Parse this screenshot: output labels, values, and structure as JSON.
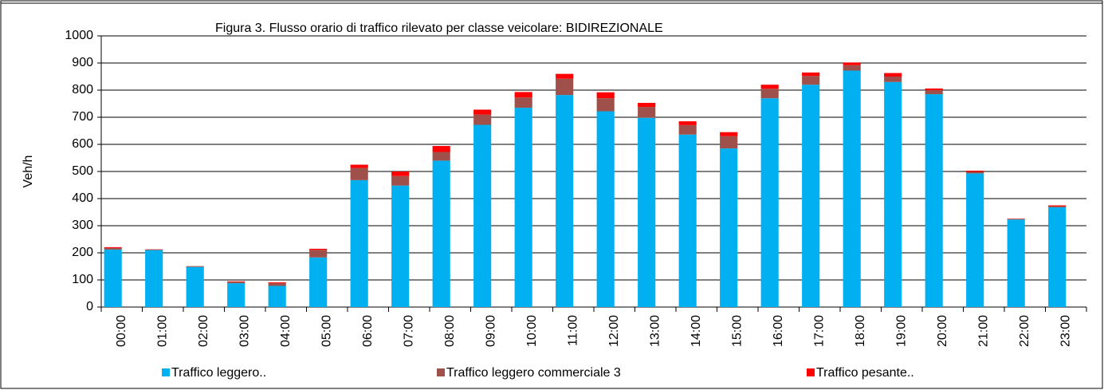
{
  "chart_data": {
    "type": "stacked_bar",
    "title": "Figura 3. Flusso orario di traffico rilevato per classe veicolare:  BIDIREZIONALE",
    "y_label": "Veh/h",
    "categories": [
      "00:00",
      "01:00",
      "02:00",
      "03:00",
      "04:00",
      "05:00",
      "06:00",
      "07:00",
      "08:00",
      "09:00",
      "10:00",
      "11:00",
      "12:00",
      "13:00",
      "14:00",
      "15:00",
      "16:00",
      "17:00",
      "18:00",
      "19:00",
      "20:00",
      "21:00",
      "22:00",
      "23:00"
    ],
    "series": [
      {
        "name": "Traffico leggero..",
        "color": "#00b0f0",
        "values": [
          212,
          210,
          148,
          88,
          78,
          183,
          468,
          448,
          540,
          672,
          735,
          782,
          722,
          698,
          636,
          585,
          770,
          820,
          872,
          830,
          785,
          493,
          323,
          368
        ]
      },
      {
        "name": "Traffico  leggero commerciale 3",
        "color": "#a0504a",
        "values": [
          6,
          2,
          3,
          5,
          10,
          28,
          45,
          35,
          32,
          38,
          38,
          60,
          48,
          40,
          35,
          45,
          35,
          32,
          20,
          20,
          15,
          6,
          2,
          4
        ]
      },
      {
        "name": "Traffico pesante..",
        "color": "#ff0000",
        "values": [
          3,
          1,
          0,
          2,
          3,
          4,
          12,
          17,
          22,
          18,
          20,
          18,
          22,
          15,
          14,
          15,
          15,
          13,
          10,
          13,
          6,
          4,
          1,
          3
        ]
      }
    ],
    "ylim": [
      0,
      1000
    ],
    "yticks": [
      0,
      100,
      200,
      300,
      400,
      500,
      600,
      700,
      800,
      900,
      1000
    ],
    "grid": true,
    "legend": "bottom"
  }
}
